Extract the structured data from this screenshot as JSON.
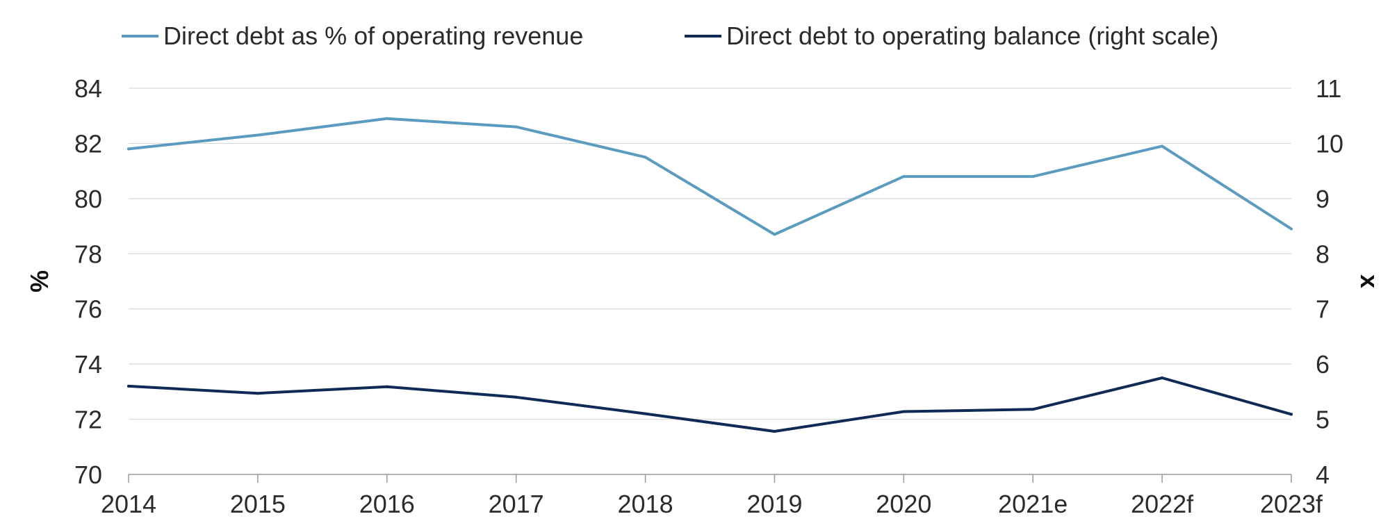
{
  "chart_data": {
    "type": "line",
    "title": "",
    "categories": [
      "2014",
      "2015",
      "2016",
      "2017",
      "2018",
      "2019",
      "2020",
      "2021e",
      "2022f",
      "2023f"
    ],
    "left_axis": {
      "label": "%",
      "ylim": [
        70,
        84
      ],
      "ticks": [
        "70",
        "72",
        "74",
        "76",
        "78",
        "80",
        "82",
        "84"
      ]
    },
    "right_axis": {
      "label": "x",
      "ylim": [
        4,
        11
      ],
      "ticks": [
        "4",
        "5",
        "6",
        "7",
        "8",
        "9",
        "10",
        "11"
      ]
    },
    "series": [
      {
        "name": "Direct debt as % of operating revenue",
        "axis": "left",
        "color": "#5b9bbf",
        "values": [
          81.8,
          82.3,
          82.9,
          82.6,
          81.5,
          78.7,
          80.8,
          80.8,
          81.9,
          78.9
        ]
      },
      {
        "name": "Direct debt to operating balance (right scale)",
        "axis": "right",
        "color": "#0f2a57",
        "values": [
          5.6,
          5.47,
          5.59,
          5.4,
          5.1,
          4.78,
          5.14,
          5.18,
          5.75,
          5.09
        ]
      }
    ],
    "grid": true,
    "legend_position": "top"
  }
}
